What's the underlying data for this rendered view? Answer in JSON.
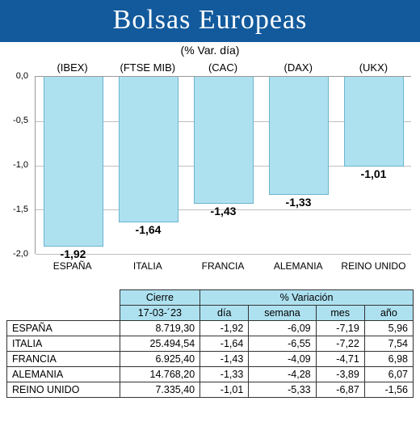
{
  "header": {
    "title": "Bolsas Europeas",
    "subtitle": "(% Var. día)"
  },
  "chart": {
    "type": "bar",
    "y_min": -2.0,
    "y_max": 0.0,
    "y_ticks": [
      0.0,
      -0.5,
      -1.0,
      -1.5,
      -2.0
    ],
    "y_tick_labels": [
      "0,0",
      "-0,5",
      "-1,0",
      "-1,5",
      "-2,0"
    ],
    "bar_color": "#aee1f0",
    "bar_border_color": "#6ab4cf",
    "grid_color": "#bfbfbf",
    "background_color": "#ffffff",
    "label_fontsize": 13,
    "value_fontsize": 14,
    "tickers": [
      "(IBEX)",
      "(FTSE MIB)",
      "(CAC)",
      "(DAX)",
      "(UKX)"
    ],
    "countries": [
      "ESPAÑA",
      "ITALIA",
      "FRANCIA",
      "ALEMANIA",
      "REINO UNIDO"
    ],
    "values": [
      -1.92,
      -1.64,
      -1.43,
      -1.33,
      -1.01
    ],
    "value_labels": [
      "-1,92",
      "-1,64",
      "-1,43",
      "-1,33",
      "-1,01"
    ]
  },
  "table": {
    "header_close": "Cierre",
    "header_var": "% Variación",
    "date_label": "17-03-´23",
    "sub_cols": [
      "día",
      "semana",
      "mes",
      "año"
    ],
    "rows": [
      {
        "country": "ESPAÑA",
        "close": "8.719,30",
        "dia": "-1,92",
        "semana": "-6,09",
        "mes": "-7,19",
        "ano": "5,96"
      },
      {
        "country": "ITALIA",
        "close": "25.494,54",
        "dia": "-1,64",
        "semana": "-6,55",
        "mes": "-7,22",
        "ano": "7,54"
      },
      {
        "country": "FRANCIA",
        "close": "6.925,40",
        "dia": "-1,43",
        "semana": "-4,09",
        "mes": "-4,71",
        "ano": "6,98"
      },
      {
        "country": "ALEMANIA",
        "close": "14.768,20",
        "dia": "-1,33",
        "semana": "-4,28",
        "mes": "-3,89",
        "ano": "6,07"
      },
      {
        "country": "REINO UNIDO",
        "close": "7.335,40",
        "dia": "-1,01",
        "semana": "-5,33",
        "mes": "-6,87",
        "ano": "-1,56"
      }
    ],
    "header_bg": "#aee1f0"
  }
}
